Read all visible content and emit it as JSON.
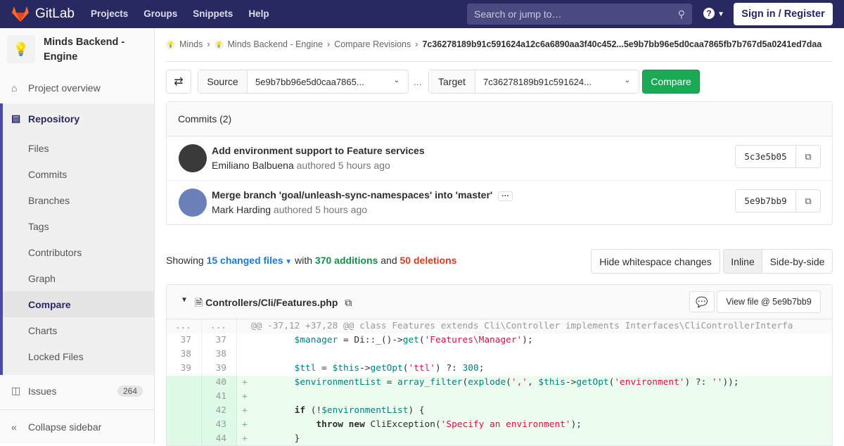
{
  "header": {
    "brand": "GitLab",
    "nav": [
      "Projects",
      "Groups",
      "Snippets",
      "Help"
    ],
    "search_placeholder": "Search or jump to…",
    "help_icon": "?",
    "signin": "Sign in / Register",
    "color": "#292961"
  },
  "sidebar": {
    "project": "Minds Backend - Engine",
    "overview": "Project overview",
    "repository": "Repository",
    "items": [
      "Files",
      "Commits",
      "Branches",
      "Tags",
      "Contributors",
      "Graph",
      "Compare",
      "Charts",
      "Locked Files"
    ],
    "issues": "Issues",
    "issues_count": "264",
    "collapse": "Collapse sidebar"
  },
  "breadcrumb": [
    "Minds",
    "Minds Backend - Engine",
    "Compare Revisions",
    "7c36278189b91c591624a12c6a6890aa3f40c452...5e9b7bb96e5d0caa7865fb7b767d5a0241ed7daa"
  ],
  "compare": {
    "source_label": "Source",
    "source_value": "5e9b7bb96e5d0caa7865...",
    "separator": "...",
    "target_label": "Target",
    "target_value": "7c36278189b91c591624...",
    "button": "Compare"
  },
  "commits": {
    "title": "Commits (2)",
    "items": [
      {
        "title": "Add environment support to Feature services",
        "author": "Emiliano Balbuena",
        "meta": "authored 5 hours ago",
        "sha": "5c3e5b05"
      },
      {
        "title": "Merge branch 'goal/unleash-sync-namespaces' into 'master'",
        "author": "Mark Harding",
        "meta": "authored 5 hours ago",
        "sha": "5e9b7bb9",
        "ellipsis": "···"
      }
    ]
  },
  "stats": {
    "showing": "Showing",
    "changed": "15 changed files",
    "with": "with",
    "additions": "370 additions",
    "and": "and",
    "deletions": "50 deletions"
  },
  "view": {
    "whitespace": "Hide whitespace changes",
    "inline": "Inline",
    "side": "Side-by-side"
  },
  "file": {
    "name": "Controllers/Cli/Features.php",
    "view": "View file @ 5e9b7bb9"
  },
  "diff": [
    {
      "type": "hunk",
      "old": "...",
      "new": "...",
      "tokens": [
        [
          "p",
          "@@ -37,12 +37,28 @@ class Features extends Cli\\Controller implements Interfaces\\CliControllerInterfa"
        ]
      ]
    },
    {
      "type": "ctx",
      "old": "37",
      "new": "37",
      "tokens": [
        [
          "p",
          "        "
        ],
        [
          "v",
          "$manager"
        ],
        [
          "p",
          " = Di::_()->"
        ],
        [
          "f",
          "get"
        ],
        [
          "p",
          "("
        ],
        [
          "s",
          "'Features\\Manager'"
        ],
        [
          "p",
          ");"
        ]
      ]
    },
    {
      "type": "ctx",
      "old": "38",
      "new": "38",
      "tokens": []
    },
    {
      "type": "ctx",
      "old": "39",
      "new": "39",
      "tokens": [
        [
          "p",
          "        "
        ],
        [
          "v",
          "$ttl"
        ],
        [
          "p",
          " = "
        ],
        [
          "v",
          "$this"
        ],
        [
          "p",
          "->"
        ],
        [
          "f",
          "getOpt"
        ],
        [
          "p",
          "("
        ],
        [
          "s",
          "'ttl'"
        ],
        [
          "p",
          ") ?: "
        ],
        [
          "n",
          "300"
        ],
        [
          "p",
          ";"
        ]
      ]
    },
    {
      "type": "add",
      "old": "",
      "new": "40",
      "tokens": [
        [
          "p",
          "        "
        ],
        [
          "v",
          "$environmentList"
        ],
        [
          "p",
          " = "
        ],
        [
          "f",
          "array_filter"
        ],
        [
          "p",
          "("
        ],
        [
          "f",
          "explode"
        ],
        [
          "p",
          "("
        ],
        [
          "s",
          "','"
        ],
        [
          "p",
          ", "
        ],
        [
          "v",
          "$this"
        ],
        [
          "p",
          "->"
        ],
        [
          "f",
          "getOpt"
        ],
        [
          "p",
          "("
        ],
        [
          "s",
          "'environment'"
        ],
        [
          "p",
          ") ?: "
        ],
        [
          "s",
          "''"
        ],
        [
          "p",
          "));"
        ]
      ]
    },
    {
      "type": "add",
      "old": "",
      "new": "41",
      "tokens": []
    },
    {
      "type": "add",
      "old": "",
      "new": "42",
      "tokens": [
        [
          "p",
          "        "
        ],
        [
          "k",
          "if"
        ],
        [
          "p",
          " (!"
        ],
        [
          "v",
          "$environmentList"
        ],
        [
          "p",
          ") {"
        ]
      ]
    },
    {
      "type": "add",
      "old": "",
      "new": "43",
      "tokens": [
        [
          "p",
          "            "
        ],
        [
          "k",
          "throw new"
        ],
        [
          "p",
          " CliException("
        ],
        [
          "s",
          "'Specify an environment'"
        ],
        [
          "p",
          ");"
        ]
      ]
    },
    {
      "type": "add",
      "old": "",
      "new": "44",
      "tokens": [
        [
          "p",
          "        }"
        ]
      ]
    }
  ]
}
